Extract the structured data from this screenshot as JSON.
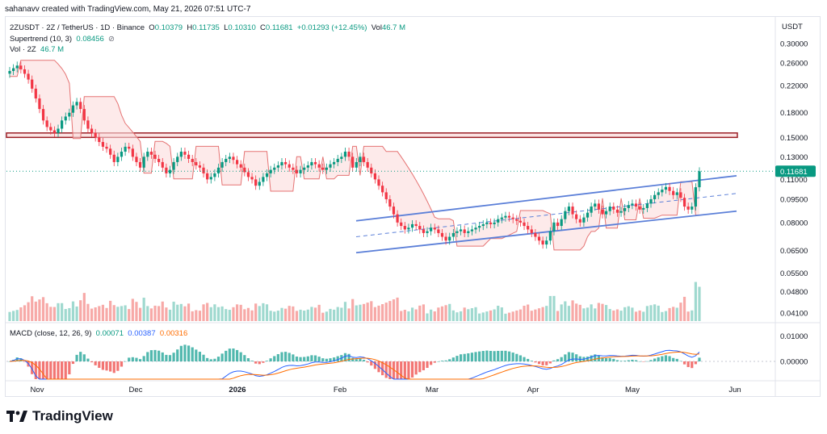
{
  "header": {
    "text": "sahanavv created with TradingView.com, May 21, 2026 07:51 UTC-7"
  },
  "legend": {
    "symbol": "2ZUSDT · 2Z / TetherUS · 1D · Binance",
    "o_label": "O",
    "o_value": "0.10379",
    "h_label": "H",
    "h_value": "0.11735",
    "l_label": "L",
    "l_value": "0.10310",
    "c_label": "C",
    "c_value": "0.11681",
    "change": "+0.01293 (+12.45%)",
    "vol_label": "Vol",
    "vol_value": "46.7 M",
    "supertrend_label": "Supertrend (10, 3)",
    "supertrend_value": "0.08456",
    "volume_label": "Vol · 2Z",
    "volume_value": "46.7 M",
    "macd_label": "MACD (close, 12, 26, 9)",
    "macd_hist": "0.00071",
    "macd_line": "0.00387",
    "macd_signal": "0.00316"
  },
  "brand": {
    "name": "TradingView"
  },
  "colors": {
    "up": "#089981",
    "down": "#f23645",
    "channel": "#5b7fd8",
    "zone": "#9c1f26",
    "supertrend_down_fill": "#fcdcdc",
    "supertrend_up_fill": "#dff3e8",
    "macd": "#2962ff",
    "signal": "#ff6d00"
  },
  "chart_data": {
    "type": "candlestick",
    "price_axis": {
      "unit": "USDT",
      "scale": "log",
      "ticks": [
        "0.30000",
        "0.26000",
        "0.22000",
        "0.18000",
        "0.15000",
        "0.13000",
        "0.11000",
        "0.09500",
        "0.08000",
        "0.06500",
        "0.05500",
        "0.04800",
        "0.04100"
      ],
      "current_price_label": "0.11681"
    },
    "macd_axis": {
      "ticks": [
        "0.01000",
        "0.00000"
      ]
    },
    "time_axis": {
      "ticks": [
        "Nov",
        "Dec",
        "2026",
        "Feb",
        "Mar",
        "Apr",
        "May",
        "Jun"
      ]
    },
    "start_date": "2025-10-24",
    "candles_close": [
      0.245,
      0.25,
      0.255,
      0.248,
      0.24,
      0.23,
      0.215,
      0.2,
      0.185,
      0.17,
      0.162,
      0.158,
      0.155,
      0.16,
      0.17,
      0.175,
      0.18,
      0.19,
      0.195,
      0.185,
      0.17,
      0.16,
      0.155,
      0.15,
      0.145,
      0.14,
      0.138,
      0.132,
      0.125,
      0.13,
      0.135,
      0.14,
      0.138,
      0.13,
      0.125,
      0.12,
      0.13,
      0.135,
      0.132,
      0.128,
      0.125,
      0.12,
      0.115,
      0.118,
      0.125,
      0.13,
      0.135,
      0.132,
      0.128,
      0.125,
      0.122,
      0.12,
      0.115,
      0.11,
      0.112,
      0.115,
      0.12,
      0.125,
      0.128,
      0.13,
      0.127,
      0.123,
      0.12,
      0.116,
      0.112,
      0.11,
      0.105,
      0.108,
      0.112,
      0.115,
      0.118,
      0.12,
      0.122,
      0.125,
      0.123,
      0.12,
      0.118,
      0.115,
      0.118,
      0.12,
      0.122,
      0.125,
      0.123,
      0.12,
      0.118,
      0.12,
      0.123,
      0.125,
      0.128,
      0.13,
      0.135,
      0.13,
      0.12,
      0.125,
      0.13,
      0.125,
      0.12,
      0.115,
      0.11,
      0.105,
      0.1,
      0.095,
      0.09,
      0.085,
      0.08,
      0.078,
      0.076,
      0.077,
      0.079,
      0.078,
      0.076,
      0.074,
      0.075,
      0.077,
      0.076,
      0.074,
      0.072,
      0.07,
      0.072,
      0.074,
      0.075,
      0.076,
      0.074,
      0.075,
      0.076,
      0.077,
      0.078,
      0.079,
      0.08,
      0.079,
      0.08,
      0.082,
      0.083,
      0.084,
      0.083,
      0.082,
      0.081,
      0.08,
      0.078,
      0.076,
      0.074,
      0.072,
      0.07,
      0.068,
      0.07,
      0.075,
      0.08,
      0.078,
      0.082,
      0.087,
      0.09,
      0.085,
      0.082,
      0.08,
      0.083,
      0.086,
      0.09,
      0.092,
      0.088,
      0.085,
      0.087,
      0.09,
      0.088,
      0.086,
      0.087,
      0.089,
      0.091,
      0.092,
      0.09,
      0.088,
      0.089,
      0.092,
      0.095,
      0.098,
      0.1,
      0.102,
      0.104,
      0.101,
      0.098,
      0.1,
      0.096,
      0.09,
      0.088,
      0.09,
      0.1038,
      0.1168
    ],
    "supertrend": {
      "value": 0.08456
    },
    "resistance_zone": [
      0.15,
      0.155
    ],
    "channel": {
      "lower_start": 0.064,
      "lower_end": 0.087,
      "upper_start": 0.081,
      "upper_end": 0.113
    },
    "volume": {
      "last": "46.7 M"
    },
    "macd": {
      "hist": 0.00071,
      "macd": 0.00387,
      "signal": 0.00316
    }
  }
}
